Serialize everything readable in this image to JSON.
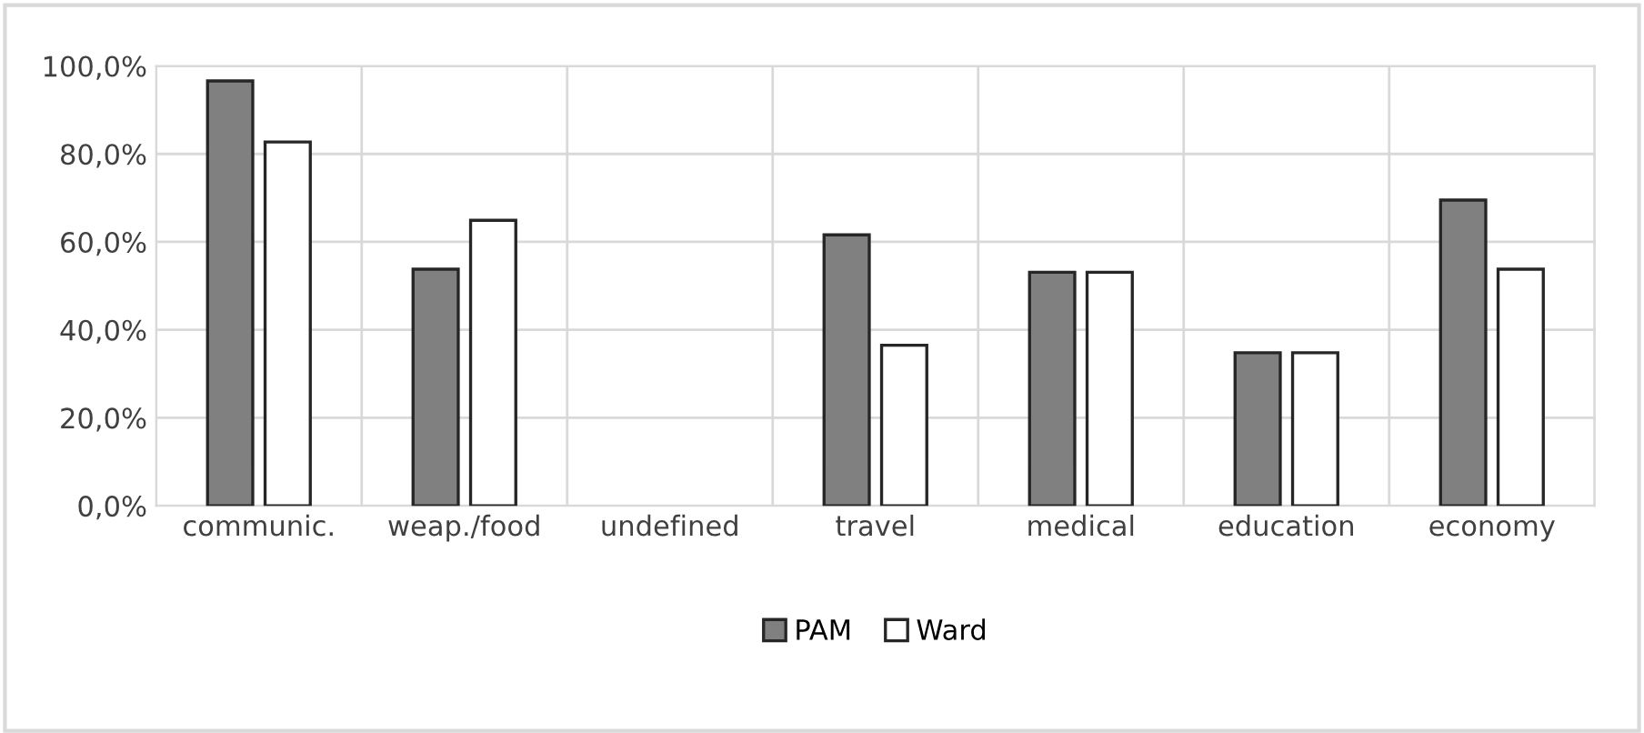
{
  "chart_data": {
    "type": "bar",
    "categories": [
      "communic.",
      "weap./food",
      "undefined",
      "travel",
      "medical",
      "education",
      "economy"
    ],
    "series": [
      {
        "name": "PAM",
        "color": "#808080",
        "values": [
          96.6,
          53.8,
          null,
          61.6,
          53.1,
          34.8,
          69.5
        ]
      },
      {
        "name": "Ward",
        "color": "#ffffff",
        "values": [
          82.7,
          64.9,
          null,
          36.5,
          53.1,
          34.8,
          53.8
        ]
      }
    ],
    "ylim": [
      0,
      100
    ],
    "yticks": [
      {
        "value": 0,
        "label": "0,0%"
      },
      {
        "value": 20,
        "label": "20,0%"
      },
      {
        "value": 40,
        "label": "40,0%"
      },
      {
        "value": 60,
        "label": "60,0%"
      },
      {
        "value": 80,
        "label": "80,0%"
      },
      {
        "value": 100,
        "label": "100,0%"
      }
    ],
    "grid": true,
    "legend": "bottom"
  }
}
